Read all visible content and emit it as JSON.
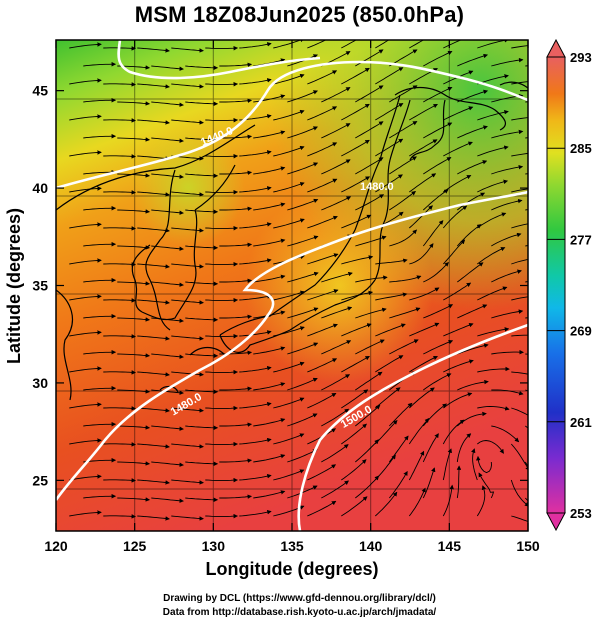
{
  "title": "MSM 18Z08Jun2025 (850.0hPa)",
  "x_axis": {
    "label": "Longitude (degrees)",
    "ticks": [
      120,
      125,
      130,
      135,
      140,
      145,
      150
    ],
    "range": [
      120,
      150
    ]
  },
  "y_axis": {
    "label": "Latitude  (degrees)",
    "ticks": [
      25,
      30,
      35,
      40,
      45
    ],
    "range": [
      22.4,
      47.6
    ]
  },
  "colorbar": {
    "ticks": [
      293,
      285,
      277,
      269,
      261,
      253
    ],
    "range": [
      253,
      293
    ],
    "colors": [
      "#e0309a",
      "#7a2bd0",
      "#2030c8",
      "#1870e8",
      "#10b8e8",
      "#10c8a8",
      "#30c840",
      "#90d830",
      "#e0e020",
      "#f0b818",
      "#f07818",
      "#e83828",
      "#e86060"
    ]
  },
  "contours": [
    {
      "label": "1440.0",
      "value": 1440
    },
    {
      "label": "1480.0",
      "value": 1480
    },
    {
      "label": "1500.0",
      "value": 1500
    }
  ],
  "credits": {
    "line1": "Drawing by DCL (https://www.gfd-dennou.org/library/dcl/)",
    "line2": "Data from http://database.rish.kyoto-u.ac.jp/arch/jmadata/"
  }
}
